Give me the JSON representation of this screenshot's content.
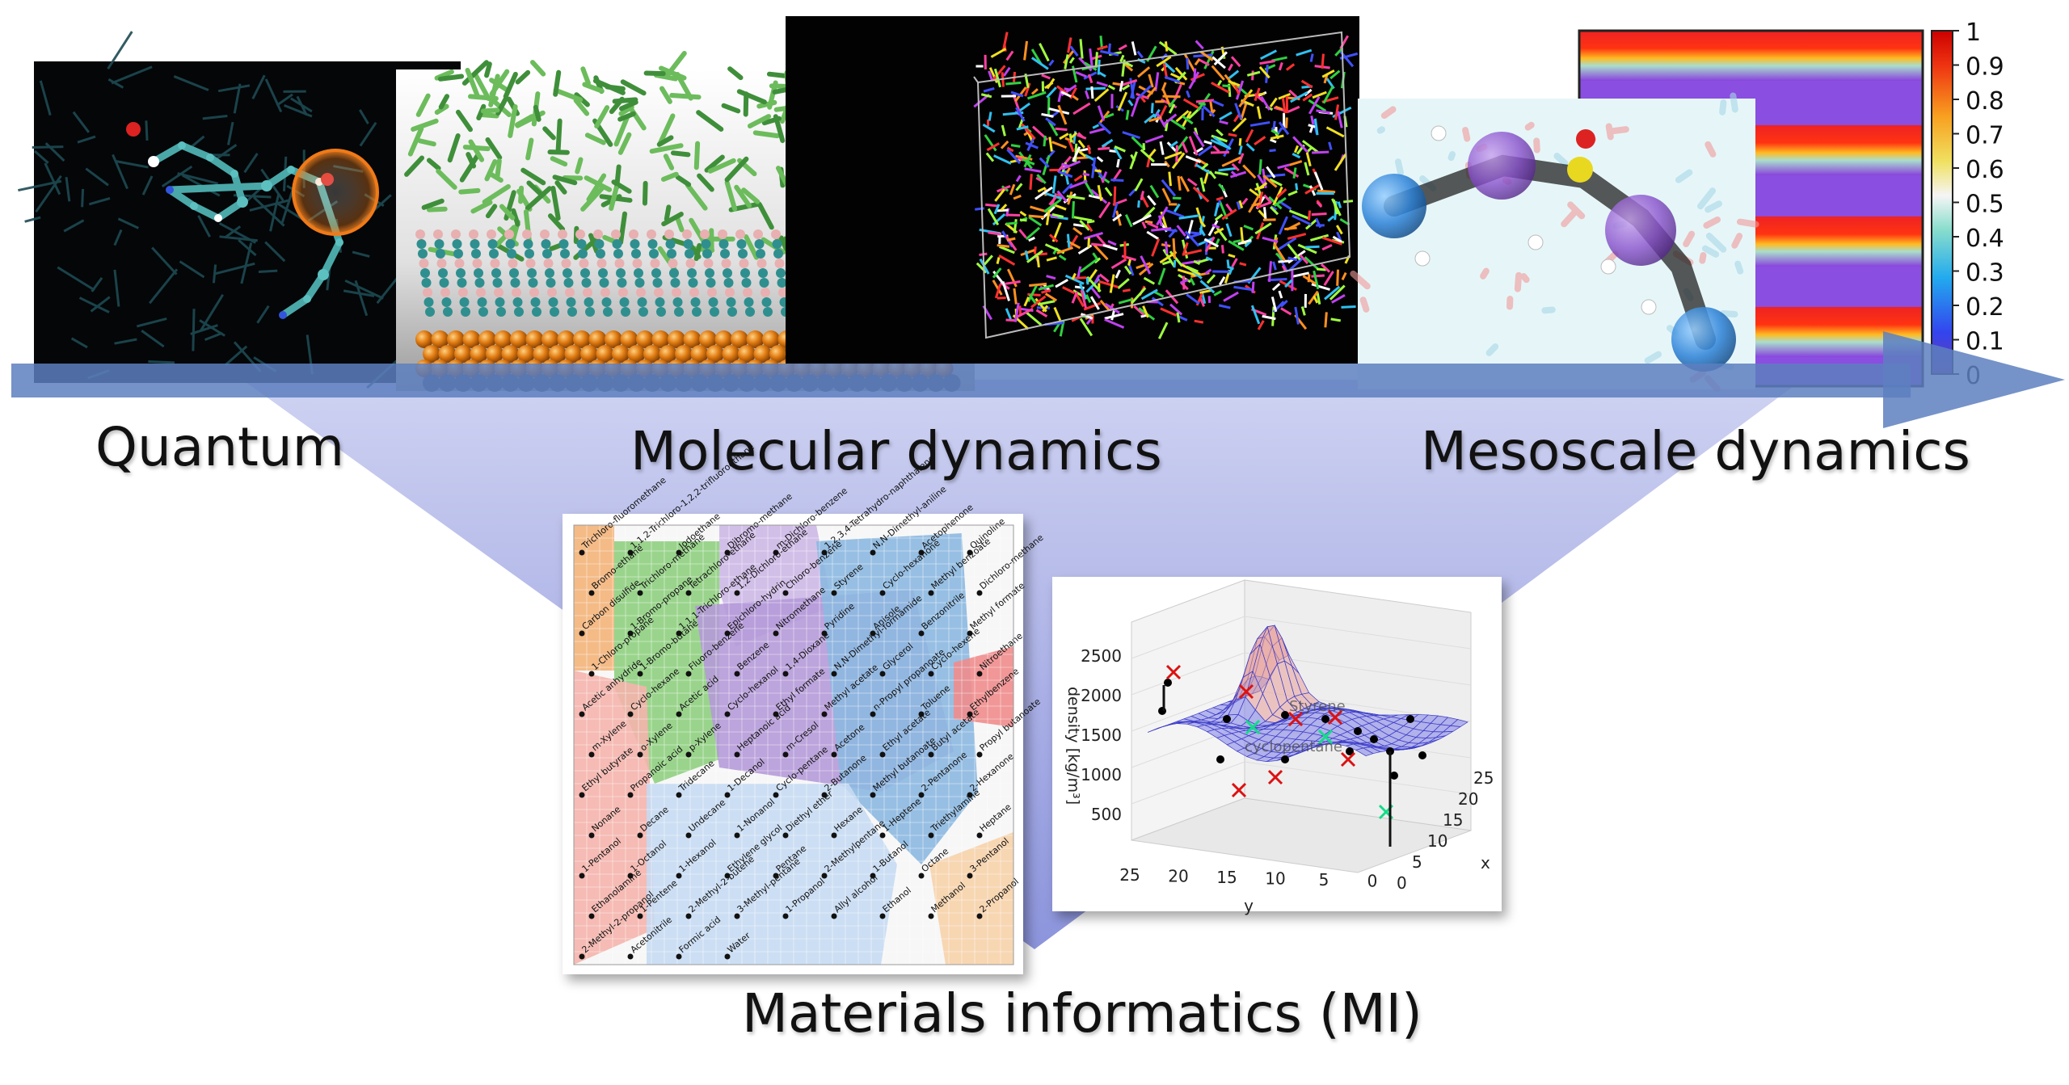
{
  "labels": {
    "quantum": "Quantum",
    "molecular_dynamics": "Molecular dynamics",
    "mesoscale_dynamics": "Mesoscale dynamics",
    "materials_informatics": "Materials informatics (MI)"
  },
  "colorbar": {
    "ticks": [
      "1",
      "0.9",
      "0.8",
      "0.7",
      "0.6",
      "0.5",
      "0.4",
      "0.3",
      "0.2",
      "0.1",
      "0"
    ]
  },
  "solvent_map": {
    "names": [
      "Trichloro-fluoromethane",
      "1,1,2-Trichloro-1,2,2-trifluoroethane",
      "Iodoethane",
      "Dibromo-methane",
      "m-Dichloro-benzene",
      "1,2,3,4-Tetrahydro-naphthalene",
      "N,N-Dimethyl-aniline",
      "Acetophenone",
      "Quinoline",
      "Bromo-ethane",
      "Trichloro-methane",
      "Tetrachloro-ethane",
      "1,2-Dichloro-ethane",
      "Chloro-benzene",
      "Styrene",
      "Cyclo-hexanone",
      "Methyl benzoate",
      "Dichloro-methane",
      "Carbon disulfide",
      "1-Bromo-propane",
      "1,1,1-Trichloro-ethane",
      "Epichloro-hydrin",
      "Nitromethane",
      "Pyridine",
      "Anisole",
      "Benzonitrile",
      "Methyl formate",
      "1-Chloro-propane",
      "1-Bromo-butane",
      "Fluoro-benzene",
      "Benzene",
      "1,4-Dioxane",
      "N,N-Dimethyl-formamide",
      "Glycerol",
      "Cyclo-hexene",
      "Nitroethane",
      "Acetic anhydride",
      "Cyclo-hexane",
      "Acetic acid",
      "Cyclo-hexanol",
      "Ethyl formate",
      "Methyl acetate",
      "n-Propyl propanoate",
      "Toluene",
      "Ethylbenzene",
      "m-Xylene",
      "o-Xylene",
      "p-Xylene",
      "Heptanoic acid",
      "m-Cresol",
      "Acetone",
      "Ethyl acetate",
      "Butyl acetate",
      "Propyl butanoate",
      "Ethyl butyrate",
      "Propanoic acid",
      "Tridecane",
      "1-Decanol",
      "Cyclo-pentane",
      "2-Butanone",
      "Methyl butanoate",
      "2-Pentanone",
      "2-Hexanone",
      "Nonane",
      "Decane",
      "Undecane",
      "1-Nonanol",
      "Diethyl ether",
      "Hexane",
      "1-Heptene",
      "Triethylamine",
      "Heptane",
      "1-Pentanol",
      "1-Octanol",
      "1-Hexanol",
      "Ethylene glycol",
      "Pentane",
      "2-Methylpentane",
      "1-Butanol",
      "Octane",
      "3-Pentanol",
      "Ethanolamine",
      "1-Pentene",
      "2-Methyl-2-butene",
      "3-Methyl-pentane",
      "1-Propanol",
      "Allyl alcohol",
      "Ethanol",
      "Methanol",
      "2-Propanol",
      "2-Methyl-2-propanol",
      "Acetonitrile",
      "Formic acid",
      "Water"
    ]
  },
  "chart_data": {
    "type": "surface3d",
    "title": "",
    "zlabel": "density [kg/m³]",
    "xlabel": "x",
    "ylabel": "y",
    "zticks": [
      500,
      1000,
      1500,
      2000,
      2500
    ],
    "yticks": [
      25,
      20,
      15,
      10,
      5,
      0
    ],
    "xticks": [
      0,
      5,
      10,
      15,
      20,
      25
    ],
    "annotations": [
      "Styrene",
      "cyclopentane"
    ],
    "marker_colors": {
      "observed": "#000000",
      "outlier": "#dd1111",
      "selected": "#11dd88"
    }
  },
  "colors": {
    "arrow": "#5d7fc0",
    "triangle": "#aab4e6",
    "surface": "#6a6ae8",
    "surface_peak": "#f3d070"
  }
}
